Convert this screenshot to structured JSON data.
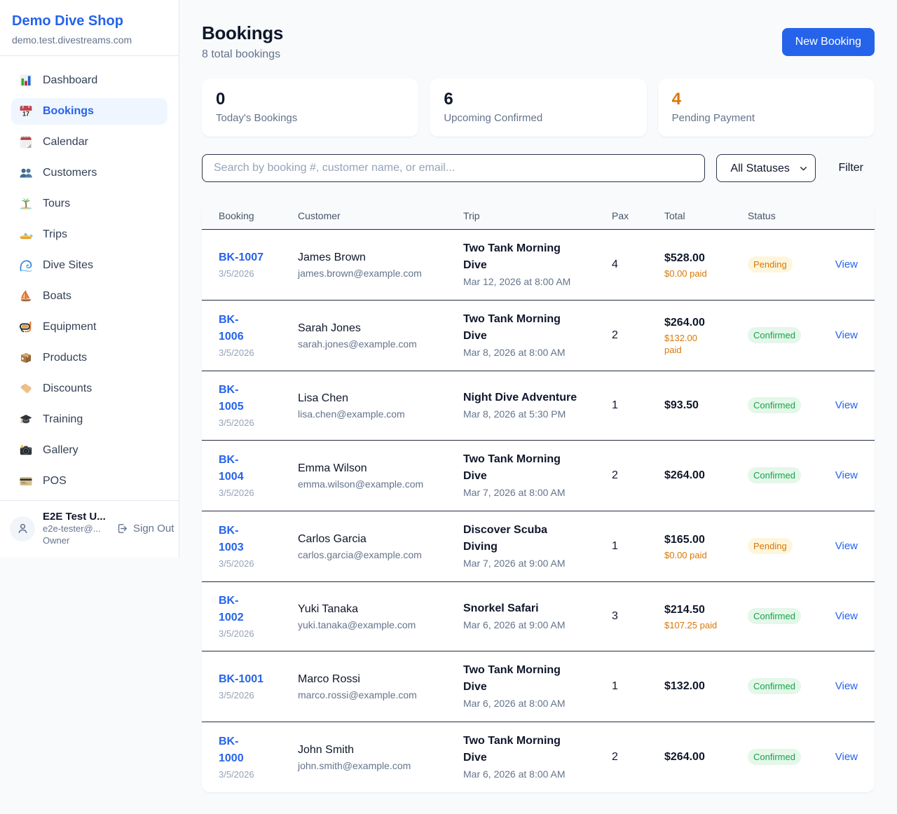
{
  "sidebar": {
    "brand": "Demo Dive Shop",
    "domain": "demo.test.divestreams.com",
    "items": [
      {
        "label": "Dashboard",
        "icon": "bar-chart-icon",
        "active": false
      },
      {
        "label": "Bookings",
        "icon": "calendar-date-icon",
        "active": true
      },
      {
        "label": "Calendar",
        "icon": "spiral-calendar-icon",
        "active": false
      },
      {
        "label": "Customers",
        "icon": "users-icon",
        "active": false
      },
      {
        "label": "Tours",
        "icon": "island-icon",
        "active": false
      },
      {
        "label": "Trips",
        "icon": "speedboat-icon",
        "active": false
      },
      {
        "label": "Dive Sites",
        "icon": "wave-icon",
        "active": false
      },
      {
        "label": "Boats",
        "icon": "sailboat-icon",
        "active": false
      },
      {
        "label": "Equipment",
        "icon": "diving-mask-icon",
        "active": false
      },
      {
        "label": "Products",
        "icon": "package-icon",
        "active": false
      },
      {
        "label": "Discounts",
        "icon": "tag-icon",
        "active": false
      },
      {
        "label": "Training",
        "icon": "graduation-cap-icon",
        "active": false
      },
      {
        "label": "Gallery",
        "icon": "camera-icon",
        "active": false
      },
      {
        "label": "POS",
        "icon": "credit-card-icon",
        "active": false
      }
    ],
    "user": {
      "name": "E2E Test U...",
      "email": "e2e-tester@...",
      "role": "Owner",
      "sign_out_label": "Sign Out"
    }
  },
  "header": {
    "title": "Bookings",
    "subtitle": "8 total bookings",
    "new_booking_label": "New Booking"
  },
  "stats": [
    {
      "value": "0",
      "label": "Today's Bookings",
      "value_color": "#0f172a"
    },
    {
      "value": "6",
      "label": "Upcoming Confirmed",
      "value_color": "#0f172a"
    },
    {
      "value": "4",
      "label": "Pending Payment",
      "value_color": "#d97706"
    }
  ],
  "controls": {
    "search_placeholder": "Search by booking #, customer name, or email...",
    "status_filter_value": "All Statuses",
    "filter_label": "Filter"
  },
  "table": {
    "columns": [
      "Booking",
      "Customer",
      "Trip",
      "Pax",
      "Total",
      "Status",
      ""
    ],
    "rows": [
      {
        "booking_id_lines": [
          "BK-1007"
        ],
        "booking_date": "3/5/2026",
        "customer_name": "James Brown",
        "customer_email": "james.brown@example.com",
        "trip_name_lines": [
          "Two Tank Morning",
          "Dive"
        ],
        "trip_datetime": "Mar 12, 2026 at 8:00 AM",
        "pax": "4",
        "total": "$528.00",
        "paid_lines": [
          "$0.00 paid"
        ],
        "status": "Pending",
        "status_kind": "pending",
        "action": "View"
      },
      {
        "booking_id_lines": [
          "BK-",
          "1006"
        ],
        "booking_date": "3/5/2026",
        "customer_name": "Sarah Jones",
        "customer_email": "sarah.jones@example.com",
        "trip_name_lines": [
          "Two Tank Morning",
          "Dive"
        ],
        "trip_datetime": "Mar 8, 2026 at 8:00 AM",
        "pax": "2",
        "total": "$264.00",
        "paid_lines": [
          "$132.00",
          "paid"
        ],
        "status": "Confirmed",
        "status_kind": "confirmed",
        "action": "View"
      },
      {
        "booking_id_lines": [
          "BK-",
          "1005"
        ],
        "booking_date": "3/5/2026",
        "customer_name": "Lisa Chen",
        "customer_email": "lisa.chen@example.com",
        "trip_name_lines": [
          "Night Dive Adventure"
        ],
        "trip_datetime": "Mar 8, 2026 at 5:30 PM",
        "pax": "1",
        "total": "$93.50",
        "paid_lines": [],
        "status": "Confirmed",
        "status_kind": "confirmed",
        "action": "View"
      },
      {
        "booking_id_lines": [
          "BK-",
          "1004"
        ],
        "booking_date": "3/5/2026",
        "customer_name": "Emma Wilson",
        "customer_email": "emma.wilson@example.com",
        "trip_name_lines": [
          "Two Tank Morning",
          "Dive"
        ],
        "trip_datetime": "Mar 7, 2026 at 8:00 AM",
        "pax": "2",
        "total": "$264.00",
        "paid_lines": [],
        "status": "Confirmed",
        "status_kind": "confirmed",
        "action": "View"
      },
      {
        "booking_id_lines": [
          "BK-",
          "1003"
        ],
        "booking_date": "3/5/2026",
        "customer_name": "Carlos Garcia",
        "customer_email": "carlos.garcia@example.com",
        "trip_name_lines": [
          "Discover Scuba",
          "Diving"
        ],
        "trip_datetime": "Mar 7, 2026 at 9:00 AM",
        "pax": "1",
        "total": "$165.00",
        "paid_lines": [
          "$0.00 paid"
        ],
        "status": "Pending",
        "status_kind": "pending",
        "action": "View"
      },
      {
        "booking_id_lines": [
          "BK-",
          "1002"
        ],
        "booking_date": "3/5/2026",
        "customer_name": "Yuki Tanaka",
        "customer_email": "yuki.tanaka@example.com",
        "trip_name_lines": [
          "Snorkel Safari"
        ],
        "trip_datetime": "Mar 6, 2026 at 9:00 AM",
        "pax": "3",
        "total": "$214.50",
        "paid_lines": [
          "$107.25 paid"
        ],
        "status": "Confirmed",
        "status_kind": "confirmed",
        "action": "View"
      },
      {
        "booking_id_lines": [
          "BK-1001"
        ],
        "booking_date": "3/5/2026",
        "customer_name": "Marco Rossi",
        "customer_email": "marco.rossi@example.com",
        "trip_name_lines": [
          "Two Tank Morning",
          "Dive"
        ],
        "trip_datetime": "Mar 6, 2026 at 8:00 AM",
        "pax": "1",
        "total": "$132.00",
        "paid_lines": [],
        "status": "Confirmed",
        "status_kind": "confirmed",
        "action": "View"
      },
      {
        "booking_id_lines": [
          "BK-",
          "1000"
        ],
        "booking_date": "3/5/2026",
        "customer_name": "John Smith",
        "customer_email": "john.smith@example.com",
        "trip_name_lines": [
          "Two Tank Morning",
          "Dive"
        ],
        "trip_datetime": "Mar 6, 2026 at 8:00 AM",
        "pax": "2",
        "total": "$264.00",
        "paid_lines": [],
        "status": "Confirmed",
        "status_kind": "confirmed",
        "action": "View"
      }
    ]
  },
  "colors": {
    "accent_blue": "#2563eb",
    "page_background": "#f8fafc",
    "pending_text": "#d97706",
    "confirmed_text": "#16a34a",
    "heading_text": "#0f172a",
    "muted_text": "#64748b"
  }
}
